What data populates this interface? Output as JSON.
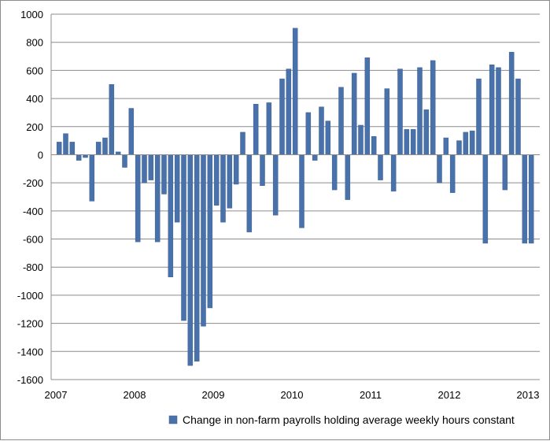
{
  "chart_data": {
    "type": "bar",
    "title": "",
    "xlabel": "",
    "ylabel": "",
    "ylim": [
      -1600,
      1000
    ],
    "yticks": [
      1000,
      800,
      600,
      400,
      200,
      0,
      -200,
      -400,
      -600,
      -800,
      -1000,
      -1200,
      -1400,
      -1600
    ],
    "xticks": [
      "2007",
      "2008",
      "2009",
      "2010",
      "2011",
      "2012",
      "2013"
    ],
    "grid": true,
    "legend_position": "bottom",
    "bar_color": "#4a72aa",
    "series": [
      {
        "name": "Change in non-farm payrolls holding average weekly hours constant",
        "x": [
          "2007-01",
          "2007-02",
          "2007-03",
          "2007-04",
          "2007-05",
          "2007-06",
          "2007-07",
          "2007-08",
          "2007-09",
          "2007-10",
          "2007-11",
          "2007-12",
          "2008-01",
          "2008-02",
          "2008-03",
          "2008-04",
          "2008-05",
          "2008-06",
          "2008-07",
          "2008-08",
          "2008-09",
          "2008-10",
          "2008-11",
          "2008-12",
          "2009-01",
          "2009-02",
          "2009-03",
          "2009-04",
          "2009-05",
          "2009-06",
          "2009-07",
          "2009-08",
          "2009-09",
          "2009-10",
          "2009-11",
          "2009-12",
          "2010-01",
          "2010-02",
          "2010-03",
          "2010-04",
          "2010-05",
          "2010-06",
          "2010-07",
          "2010-08",
          "2010-09",
          "2010-10",
          "2010-11",
          "2010-12",
          "2011-01",
          "2011-02",
          "2011-03",
          "2011-04",
          "2011-05",
          "2011-06",
          "2011-07",
          "2011-08",
          "2011-09",
          "2011-10",
          "2011-11",
          "2011-12",
          "2012-01",
          "2012-02",
          "2012-03",
          "2012-04",
          "2012-05",
          "2012-06",
          "2012-07",
          "2012-08",
          "2012-09",
          "2012-10",
          "2012-11",
          "2012-12",
          "2013-01"
        ],
        "values": [
          90,
          150,
          90,
          -40,
          -20,
          -330,
          90,
          120,
          500,
          20,
          -90,
          330,
          -620,
          -200,
          -180,
          -620,
          -280,
          -870,
          -480,
          -1180,
          -1500,
          -1470,
          -1220,
          -1090,
          -360,
          -480,
          -380,
          -210,
          160,
          -550,
          360,
          -220,
          370,
          -430,
          540,
          610,
          900,
          -520,
          300,
          -40,
          340,
          240,
          -250,
          480,
          -320,
          580,
          210,
          690,
          130,
          -180,
          470,
          -260,
          610,
          180,
          180,
          620,
          320,
          670,
          -200,
          120,
          -270,
          100,
          160,
          170,
          540,
          -630,
          640,
          620,
          -250,
          730,
          540,
          -630,
          -630
        ]
      }
    ]
  }
}
